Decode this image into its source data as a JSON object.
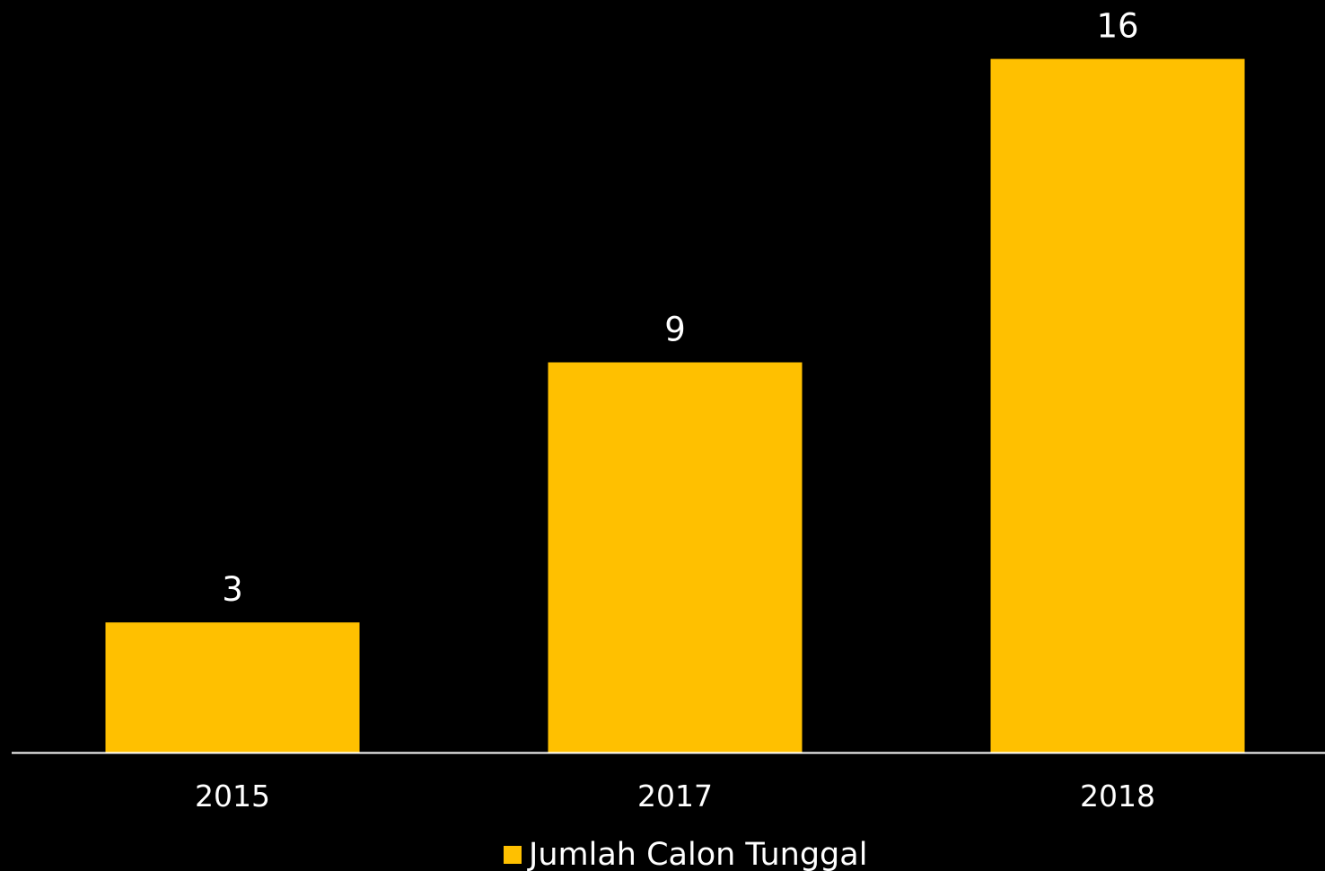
{
  "chart_data": {
    "type": "bar",
    "categories": [
      "2015",
      "2017",
      "2018"
    ],
    "series": [
      {
        "name": "Jumlah Calon Tunggal",
        "values": [
          3,
          9,
          16
        ],
        "color": "#FFC000"
      }
    ],
    "data_labels": [
      "3",
      "9",
      "16"
    ],
    "ylim": [
      0,
      16.8
    ],
    "grid": false,
    "legend_position": "bottom",
    "background": "#000000",
    "axis_color": "#FFFFFF",
    "text_color": "#FFFFFF"
  }
}
